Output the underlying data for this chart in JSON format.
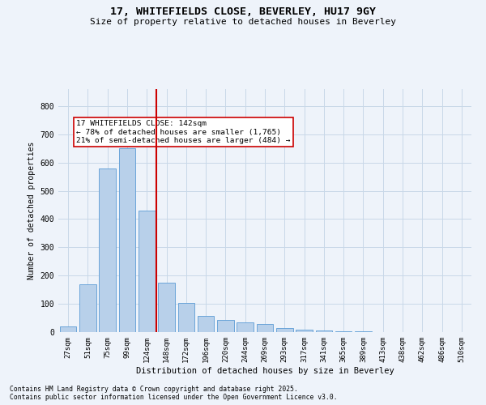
{
  "title": "17, WHITEFIELDS CLOSE, BEVERLEY, HU17 9GY",
  "subtitle": "Size of property relative to detached houses in Beverley",
  "xlabel": "Distribution of detached houses by size in Beverley",
  "ylabel": "Number of detached properties",
  "footer1": "Contains HM Land Registry data © Crown copyright and database right 2025.",
  "footer2": "Contains public sector information licensed under the Open Government Licence v3.0.",
  "bar_color": "#b8d0ea",
  "bar_edge_color": "#5b9bd5",
  "grid_color": "#c8d8e8",
  "background_color": "#eef3fa",
  "vline_color": "#cc0000",
  "annotation_text": "17 WHITEFIELDS CLOSE: 142sqm\n← 78% of detached houses are smaller (1,765)\n21% of semi-detached houses are larger (484) →",
  "annotation_box_color": "#ffffff",
  "annotation_box_edge": "#cc0000",
  "vline_x": 4.5,
  "categories": [
    "27sqm",
    "51sqm",
    "75sqm",
    "99sqm",
    "124sqm",
    "148sqm",
    "172sqm",
    "196sqm",
    "220sqm",
    "244sqm",
    "269sqm",
    "293sqm",
    "317sqm",
    "341sqm",
    "365sqm",
    "389sqm",
    "413sqm",
    "438sqm",
    "462sqm",
    "486sqm",
    "510sqm"
  ],
  "values": [
    20,
    170,
    580,
    650,
    430,
    175,
    103,
    58,
    42,
    33,
    30,
    14,
    8,
    5,
    4,
    2,
    1,
    1,
    0,
    0,
    0
  ],
  "ylim": [
    0,
    860
  ],
  "yticks": [
    0,
    100,
    200,
    300,
    400,
    500,
    600,
    700,
    800
  ]
}
